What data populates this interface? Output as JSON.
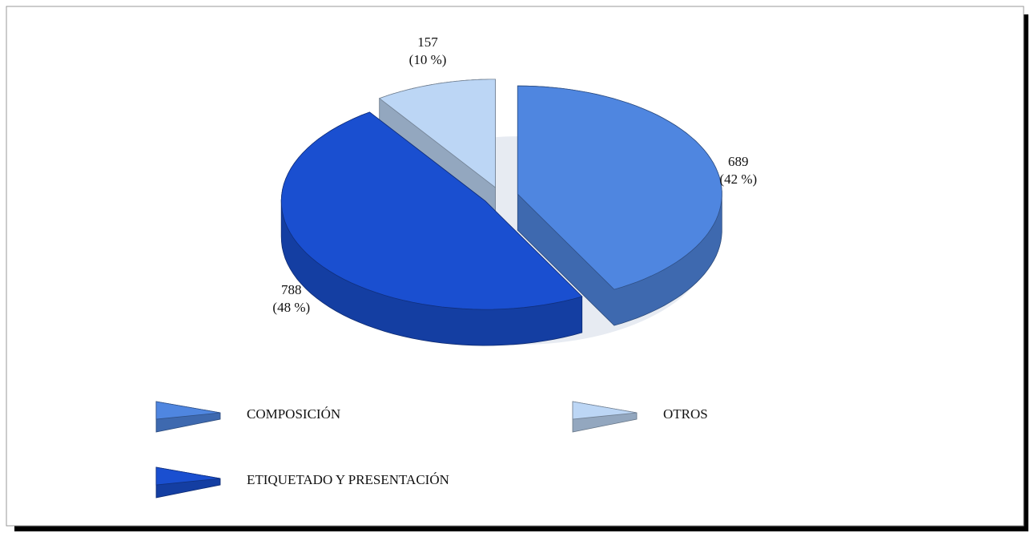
{
  "chart_data": {
    "type": "pie",
    "categories": [
      "COMPOSICIÓN",
      "ETIQUETADO Y PRESENTACIÓN",
      "OTROS"
    ],
    "values": [
      689,
      788,
      157
    ],
    "percent_labels": [
      "(42 %)",
      "(48 %)",
      "(10 %)"
    ],
    "colors": [
      "#4f86e0",
      "#1a4fd0",
      "#bcd6f5"
    ]
  }
}
